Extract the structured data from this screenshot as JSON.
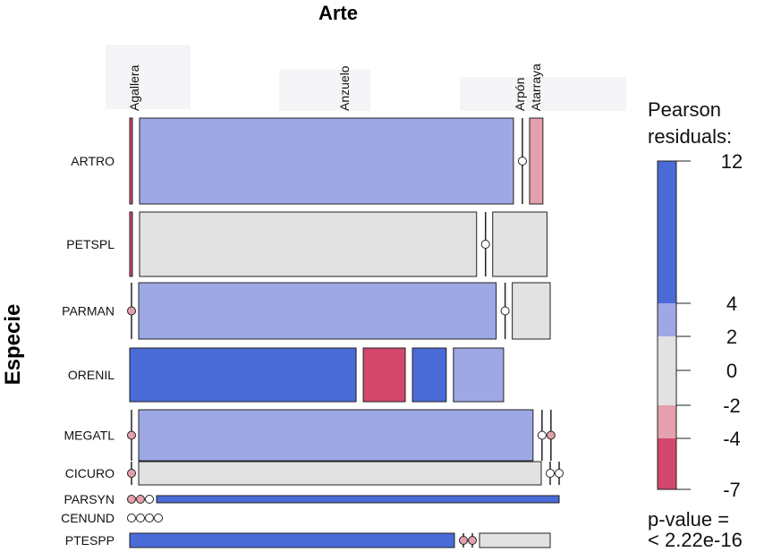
{
  "chart_data": {
    "type": "mosaic",
    "title_x": "Arte",
    "title_y": "Especie",
    "columns": [
      "Agallera",
      "Anzuelo",
      "Arpón",
      "Atarraya"
    ],
    "rows": [
      "ARTRO",
      "PETSPL",
      "PARMAN",
      "ORENIL",
      "MEGATL",
      "CICURO",
      "PARSYN",
      "CENUND",
      "PTESPP"
    ],
    "column_widths": [
      0.025,
      0.935,
      0.01,
      0.03
    ],
    "row_weights": [
      0.169,
      0.124,
      0.118,
      0.156,
      0.12,
      0.056,
      0.028,
      0.028,
      0.038
    ],
    "cell_shares": [
      [
        0.02,
        0.93,
        0.0,
        0.05
      ],
      [
        0.01,
        0.84,
        0.0,
        0.15
      ],
      [
        0.0,
        0.89,
        0.0,
        0.11
      ],
      [
        0.57,
        0.12,
        0.1,
        0.14
      ],
      [
        0.0,
        0.98,
        0.0,
        0.0
      ],
      [
        0.0,
        1.0,
        0.0,
        0.0
      ],
      [
        0.0,
        0.0,
        0.0,
        1.0
      ],
      [
        0.0,
        0.0,
        0.0,
        0.0
      ],
      [
        0.81,
        0.0,
        0.0,
        0.19
      ]
    ],
    "cell_residual_class": [
      [
        "neg-strong",
        "pos-mid",
        "zero",
        "neg-mid"
      ],
      [
        "neg-strong",
        "neutral",
        "zero",
        "neutral"
      ],
      [
        "zero-neg",
        "pos-mid",
        "zero",
        "neutral"
      ],
      [
        "pos-strong",
        "neg-strong",
        "pos-strong",
        "pos-mid"
      ],
      [
        "zero-neg",
        "pos-mid",
        "zero",
        "zero-neg"
      ],
      [
        "zero-neg",
        "neutral",
        "zero",
        "zero"
      ],
      [
        "zero-neg",
        "zero-neg",
        "zero",
        "pos-strong"
      ],
      [
        "zero",
        "zero",
        "zero",
        "zero"
      ],
      [
        "pos-strong",
        "zero-neg",
        "zero-neg",
        "neutral"
      ]
    ],
    "legend": {
      "title_line1": "Pearson",
      "title_line2": "residuals:",
      "ticks": [
        "12",
        "4",
        "2",
        "0",
        "-2",
        "-4",
        "-7"
      ],
      "pvalue_line1": "p-value =",
      "pvalue_line2": "< 2.22e-16"
    },
    "colors": {
      "pos_strong": "#4a6ad8",
      "pos_mid": "#9ea8e4",
      "neutral": "#e2e2e2",
      "neg_mid": "#e4a0ac",
      "neg_strong": "#d3476c",
      "border": "#222222"
    }
  }
}
